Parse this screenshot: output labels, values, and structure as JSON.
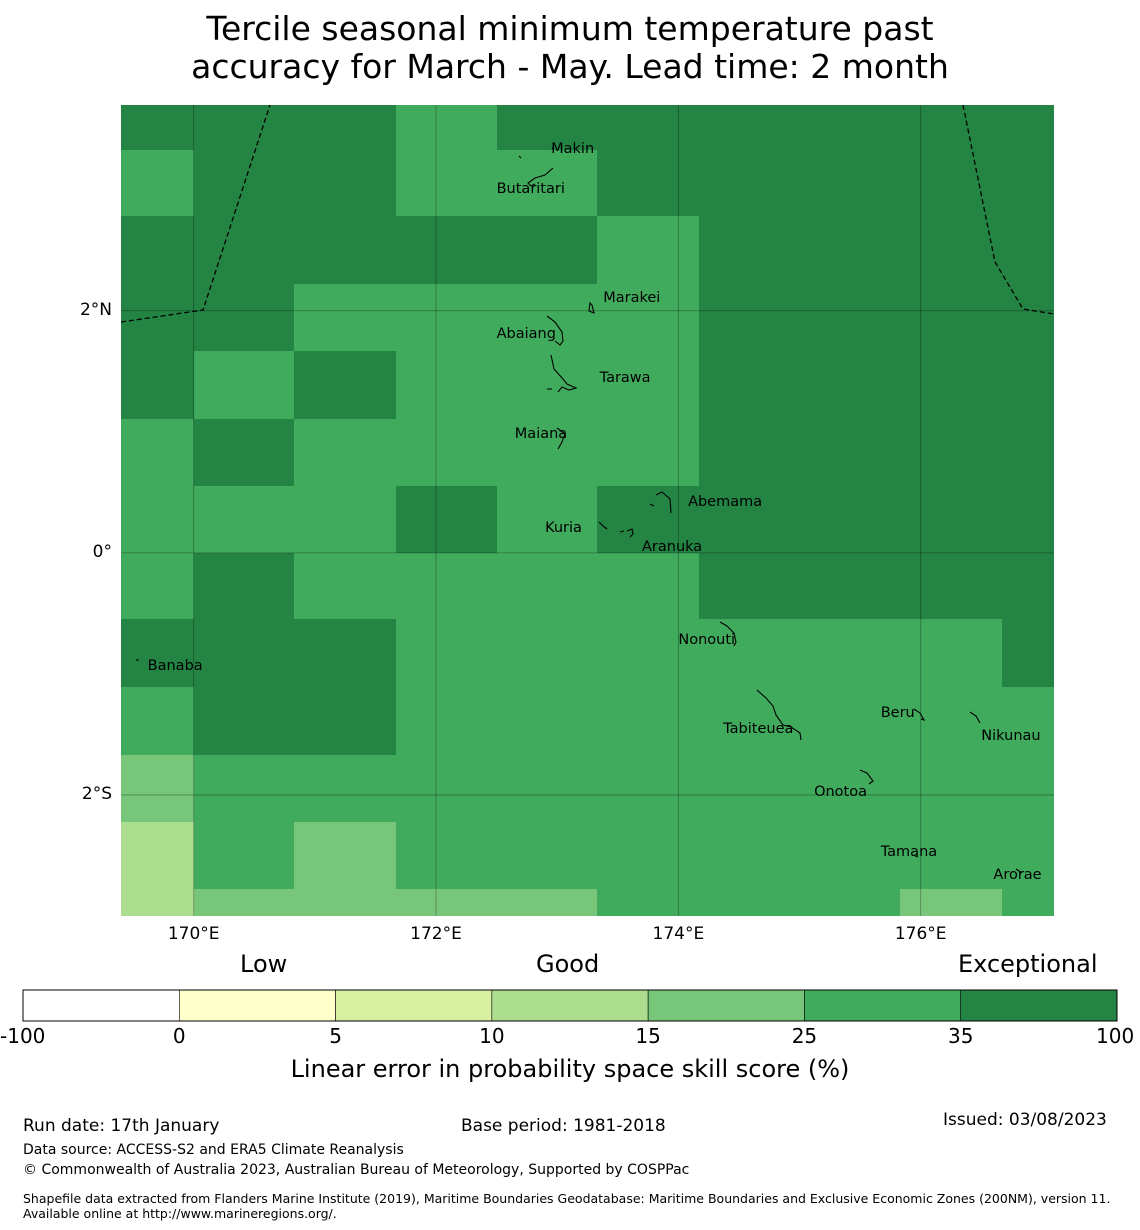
{
  "title_line1": "Tercile seasonal minimum temperature past",
  "title_line2": "accuracy for March - May. Lead time: 2 month",
  "map": {
    "lon_range": [
      169.4,
      177.1
    ],
    "lat_range": [
      -3.0,
      3.7
    ],
    "cell_x_edges": [
      169.4,
      170.0,
      170.83,
      171.67,
      172.5,
      173.33,
      174.17,
      175.0,
      175.83,
      176.67,
      177.1
    ],
    "cell_y_edges": [
      3.7,
      3.33,
      2.78,
      2.22,
      1.67,
      1.11,
      0.55,
      0.0,
      -0.55,
      -1.11,
      -1.67,
      -2.22,
      -2.78,
      -3.0
    ],
    "grid_classes": [
      [
        6,
        6,
        6,
        5,
        6,
        6,
        6,
        6,
        6,
        6
      ],
      [
        5,
        6,
        6,
        5,
        5,
        6,
        6,
        6,
        6,
        6
      ],
      [
        6,
        6,
        6,
        6,
        6,
        5,
        6,
        6,
        6,
        6
      ],
      [
        6,
        6,
        5,
        5,
        5,
        5,
        6,
        6,
        6,
        6
      ],
      [
        6,
        5,
        6,
        5,
        5,
        5,
        6,
        6,
        6,
        6
      ],
      [
        5,
        6,
        5,
        5,
        5,
        5,
        6,
        6,
        6,
        6
      ],
      [
        5,
        5,
        5,
        6,
        5,
        6,
        6,
        6,
        6,
        6
      ],
      [
        5,
        6,
        5,
        5,
        5,
        5,
        6,
        6,
        6,
        6
      ],
      [
        6,
        6,
        6,
        5,
        5,
        5,
        5,
        5,
        5,
        6
      ],
      [
        5,
        6,
        6,
        5,
        5,
        5,
        5,
        5,
        5,
        5
      ],
      [
        4,
        5,
        5,
        5,
        5,
        5,
        5,
        5,
        5,
        5
      ],
      [
        3,
        5,
        4,
        5,
        5,
        5,
        5,
        5,
        5,
        5
      ],
      [
        3,
        4,
        4,
        4,
        4,
        5,
        5,
        5,
        4,
        5
      ]
    ],
    "gridlines_lon": [
      170,
      172,
      174,
      176
    ],
    "gridlines_lat": [
      2,
      0,
      -2
    ],
    "x_ticks": [
      {
        "lon": 170,
        "label": "170°E"
      },
      {
        "lon": 172,
        "label": "172°E"
      },
      {
        "lon": 174,
        "label": "174°E"
      },
      {
        "lon": 176,
        "label": "176°E"
      }
    ],
    "y_ticks": [
      {
        "lat": 2,
        "label": "2°N"
      },
      {
        "lat": 0,
        "label": "0°"
      },
      {
        "lat": -2,
        "label": "2°S"
      }
    ],
    "places": [
      {
        "name": "Makin",
        "lon": 172.95,
        "lat": 3.33
      },
      {
        "name": "Butaritari",
        "lon": 172.5,
        "lat": 3.0
      },
      {
        "name": "Marakei",
        "lon": 173.38,
        "lat": 2.1
      },
      {
        "name": "Abaiang",
        "lon": 172.5,
        "lat": 1.8
      },
      {
        "name": "Tarawa",
        "lon": 173.35,
        "lat": 1.44
      },
      {
        "name": "Maiana",
        "lon": 172.65,
        "lat": 0.97
      },
      {
        "name": "Abemama",
        "lon": 174.08,
        "lat": 0.41
      },
      {
        "name": "Kuria",
        "lon": 172.9,
        "lat": 0.2
      },
      {
        "name": "Aranuka",
        "lon": 173.7,
        "lat": 0.04
      },
      {
        "name": "Nonouti",
        "lon": 174.0,
        "lat": -0.73
      },
      {
        "name": "Banaba",
        "lon": 169.62,
        "lat": -0.94
      },
      {
        "name": "Beru",
        "lon": 175.67,
        "lat": -1.33
      },
      {
        "name": "Tabiteuea",
        "lon": 174.37,
        "lat": -1.46
      },
      {
        "name": "Nikunau",
        "lon": 176.5,
        "lat": -1.52
      },
      {
        "name": "Onotoa",
        "lon": 175.12,
        "lat": -1.98
      },
      {
        "name": "Tamana",
        "lon": 175.67,
        "lat": -2.48
      },
      {
        "name": "Arorae",
        "lon": 176.6,
        "lat": -2.67
      }
    ]
  },
  "legend": {
    "word_low": "Low",
    "word_good": "Good",
    "word_exceptional": "Exceptional",
    "ticks": [
      "-100",
      "0",
      "5",
      "10",
      "15",
      "25",
      "35",
      "100"
    ],
    "colors": [
      "#ffffff",
      "#ffffcc",
      "#d9f0a3",
      "#addd8e",
      "#78c679",
      "#41ab5d",
      "#238443"
    ],
    "label": "Linear error in probability space skill score (%)"
  },
  "footer": {
    "run_date": "Run date: 17th January",
    "base_period": "Base period: 1981-2018",
    "issued": "Issued: 03/08/2023",
    "data_source": "Data source: ACCESS-S2 and ERA5 Climate Reanalysis",
    "copyright": "© Commonwealth of Australia 2023, Australian Bureau of Meteorology, Supported by COSPPac",
    "shapefile": "Shapefile data extracted from Flanders Marine Institute (2019), Maritime Boundaries Geodatabase: Maritime Boundaries and Exclusive Economic Zones (200NM), version 11. Available online at http://www.marineregions.org/."
  }
}
